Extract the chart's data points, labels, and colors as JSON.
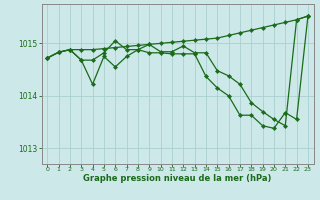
{
  "x": [
    0,
    1,
    2,
    3,
    4,
    5,
    6,
    7,
    8,
    9,
    10,
    11,
    12,
    13,
    14,
    15,
    16,
    17,
    18,
    19,
    20,
    21,
    22,
    23
  ],
  "line_diagonal": [
    1014.72,
    1014.83,
    1014.88,
    1014.88,
    1014.88,
    1014.9,
    1014.92,
    1014.94,
    1014.96,
    1014.98,
    1015.0,
    1015.02,
    1015.04,
    1015.06,
    1015.08,
    1015.1,
    1015.15,
    1015.2,
    1015.25,
    1015.3,
    1015.35,
    1015.4,
    1015.45,
    1015.52
  ],
  "line_zigzag": [
    1014.72,
    1014.83,
    1014.88,
    1014.68,
    1014.68,
    1014.82,
    1015.05,
    1014.88,
    1014.88,
    1014.98,
    1014.84,
    1014.84,
    1014.95,
    1014.82,
    1014.82,
    1014.48,
    1014.38,
    1014.22,
    1013.87,
    1013.7,
    1013.55,
    1013.43,
    1015.45,
    1015.52
  ],
  "line_declining": [
    1014.72,
    1014.83,
    1014.88,
    1014.68,
    1014.22,
    1014.75,
    1014.55,
    1014.75,
    1014.88,
    1014.82,
    1014.82,
    1014.8,
    1014.8,
    1014.8,
    1014.37,
    1014.15,
    1014.0,
    1013.63,
    1013.63,
    1013.43,
    1013.38,
    1013.68,
    1013.55,
    1015.52
  ],
  "ylim": [
    1012.7,
    1015.75
  ],
  "yticks": [
    1013,
    1014,
    1015
  ],
  "xticks": [
    0,
    1,
    2,
    3,
    4,
    5,
    6,
    7,
    8,
    9,
    10,
    11,
    12,
    13,
    14,
    15,
    16,
    17,
    18,
    19,
    20,
    21,
    22,
    23
  ],
  "xlabel": "Graphe pression niveau de la mer (hPa)",
  "line_color": "#1a6b1a",
  "bg_color": "#cce8e8",
  "grid_color": "#aacfcf",
  "markersize": 2.2,
  "linewidth": 0.9
}
